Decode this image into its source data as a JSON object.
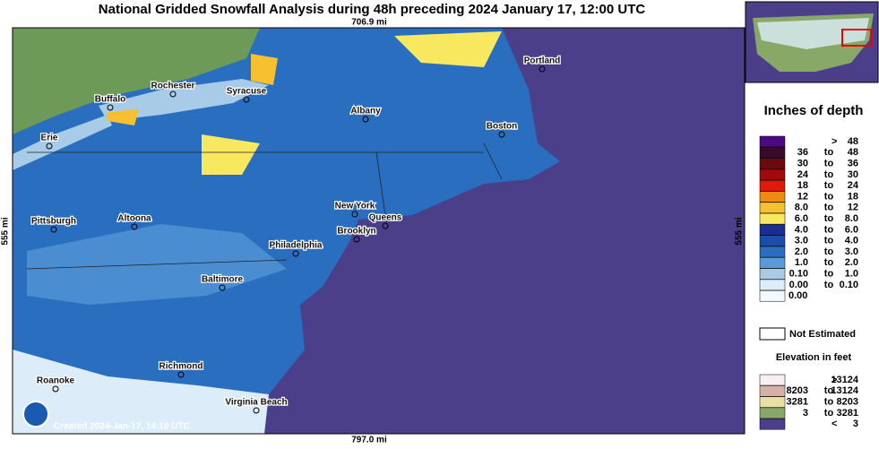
{
  "title": "National Gridded Snowfall Analysis during 48h preceding 2024 January 17, 12:00 UTC",
  "scale": {
    "top": "706.9 mi",
    "bottom": "797.0 mi",
    "left": "555 mi",
    "right": "555 mi"
  },
  "cities": [
    "Rochester",
    "Buffalo",
    "Syracuse",
    "Portland",
    "Albany",
    "Boston",
    "Erie",
    "New York",
    "Queens",
    "Pittsburgh",
    "Altoona",
    "Brooklyn",
    "Philadelphia",
    "Baltimore",
    "Richmond",
    "Roanoke",
    "Virginia Beach"
  ],
  "created": "Created 2024-Jan-17, 14:10 UTC",
  "legend": {
    "title": "Inches of depth",
    "rows": [
      {
        "low": ">",
        "high": "48",
        "color": "#4b0a82"
      },
      {
        "low": "36",
        "sep": "to",
        "high": "48",
        "color": "#3a0a2a"
      },
      {
        "low": "30",
        "sep": "to",
        "high": "36",
        "color": "#6a0a10"
      },
      {
        "low": "24",
        "sep": "to",
        "high": "30",
        "color": "#a00a0a"
      },
      {
        "low": "18",
        "sep": "to",
        "high": "24",
        "color": "#e01a0a"
      },
      {
        "low": "12",
        "sep": "to",
        "high": "18",
        "color": "#f08a10"
      },
      {
        "low": "8.0",
        "sep": "to",
        "high": "12",
        "color": "#f6c030"
      },
      {
        "low": "6.0",
        "sep": "to",
        "high": "8.0",
        "color": "#f8e860"
      },
      {
        "low": "4.0",
        "sep": "to",
        "high": "6.0",
        "color": "#1a2e90"
      },
      {
        "low": "3.0",
        "sep": "to",
        "high": "4.0",
        "color": "#1a4ea8"
      },
      {
        "low": "2.0",
        "sep": "to",
        "high": "3.0",
        "color": "#2a6ec0"
      },
      {
        "low": "1.0",
        "sep": "to",
        "high": "2.0",
        "color": "#5a9ad8"
      },
      {
        "low": "0.10",
        "sep": "to",
        "high": "1.0",
        "color": "#a8cce8"
      },
      {
        "low": "0.00",
        "sep": "to",
        "high": "0.10",
        "color": "#dcecf8"
      },
      {
        "low": "0.00",
        "color": "#f4f8ff"
      }
    ],
    "not_estimated": "Not Estimated",
    "elevation_title": "Elevation in feet",
    "elevation_rows": [
      {
        "low": ">",
        "high": "13124",
        "color": "#f8f0f0"
      },
      {
        "low": "8203",
        "sep": "to",
        "high": "13124",
        "color": "#d8b0a8"
      },
      {
        "low": "3281",
        "sep": "to",
        "high": "8203",
        "color": "#e8e0a0"
      },
      {
        "low": "3",
        "sep": "to",
        "high": "3281",
        "color": "#88a868"
      },
      {
        "low": "<",
        "high": "3",
        "color": "#4b3f8a"
      }
    ]
  }
}
